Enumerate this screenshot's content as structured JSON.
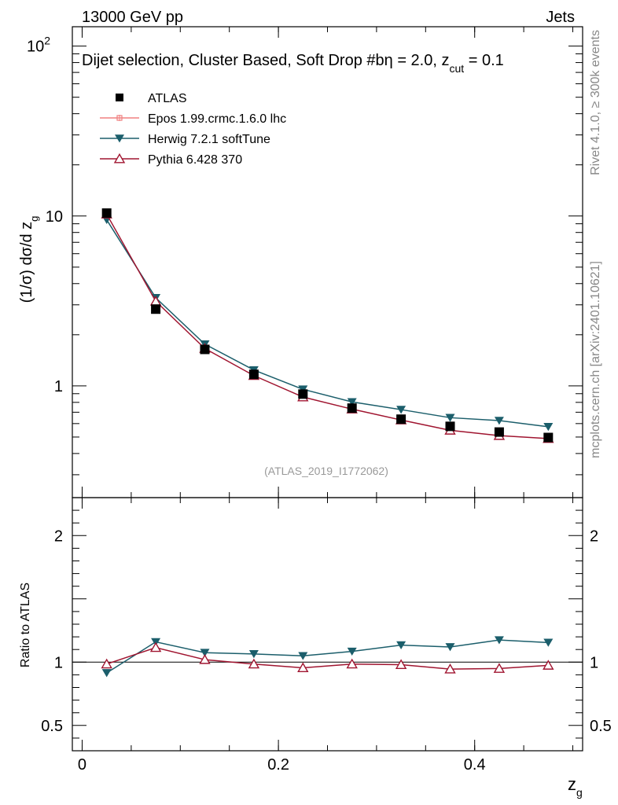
{
  "header": {
    "left": "13000 GeV pp",
    "right": "Jets",
    "side_top": "Rivet 4.1.0, ≥ 300k events",
    "side_bottom": "mcplots.cern.ch [arXiv:2401.10621]"
  },
  "chart_data": {
    "type": "line",
    "title": "Dijet selection, Cluster Based, Soft Drop #b",
    "subtitle": {
      "eta_text": "η = 2.0, z",
      "sub": "cut",
      "tail": " = 0.1"
    },
    "watermark": "(ATLAS_2019_I1772062)",
    "xlabel": {
      "main": "z",
      "sub": "g"
    },
    "ylabel": {
      "main": "(1/σ) dσ/d z",
      "sub": "g"
    },
    "ratio_ylabel": "Ratio to ATLAS",
    "xlim": [
      -0.01,
      0.51
    ],
    "ylim": [
      0.22,
      130
    ],
    "ratio_ylim": [
      0.3,
      2.3
    ],
    "x_ticks": [
      {
        "value": 0,
        "label": "0"
      },
      {
        "value": 0.2,
        "label": "0.2"
      },
      {
        "value": 0.4,
        "label": "0.4"
      }
    ],
    "y_ticks": [
      {
        "value": 1,
        "label": "1"
      },
      {
        "value": 10,
        "label": "10"
      },
      {
        "value": 100,
        "label": "10",
        "sup": "2"
      }
    ],
    "ratio_ticks": [
      {
        "value": 0.5,
        "label": "0.5"
      },
      {
        "value": 1,
        "label": "1"
      },
      {
        "value": 2,
        "label": "2"
      }
    ],
    "x": [
      0.025,
      0.075,
      0.125,
      0.175,
      0.225,
      0.275,
      0.325,
      0.375,
      0.425,
      0.475
    ],
    "series": [
      {
        "name": "ATLAS",
        "color": "#000000",
        "marker": "square",
        "values": [
          10.4,
          2.83,
          1.64,
          1.17,
          0.895,
          0.74,
          0.637,
          0.578,
          0.535,
          0.497
        ]
      },
      {
        "name": "Epos 1.99.crmc.1.6.0 lhc",
        "color": "#f08080",
        "marker": "cross",
        "values": null,
        "ratio": null
      },
      {
        "name": "Herwig 7.2.1 softTune",
        "color": "#1b5e6b",
        "marker": "down-triangle",
        "values": [
          9.5,
          3.3,
          1.76,
          1.24,
          0.955,
          0.805,
          0.725,
          0.65,
          0.625,
          0.575
        ],
        "ratio": [
          0.915,
          1.16,
          1.075,
          1.065,
          1.05,
          1.085,
          1.135,
          1.12,
          1.175,
          1.155
        ]
      },
      {
        "name": "Pythia 6.428 370",
        "color": "#a01530",
        "marker": "open-triangle",
        "values": [
          10.25,
          3.15,
          1.66,
          1.15,
          0.86,
          0.73,
          0.63,
          0.548,
          0.51,
          0.49
        ],
        "ratio": [
          0.985,
          1.115,
          1.02,
          0.985,
          0.955,
          0.985,
          0.98,
          0.945,
          0.95,
          0.975
        ]
      }
    ]
  }
}
